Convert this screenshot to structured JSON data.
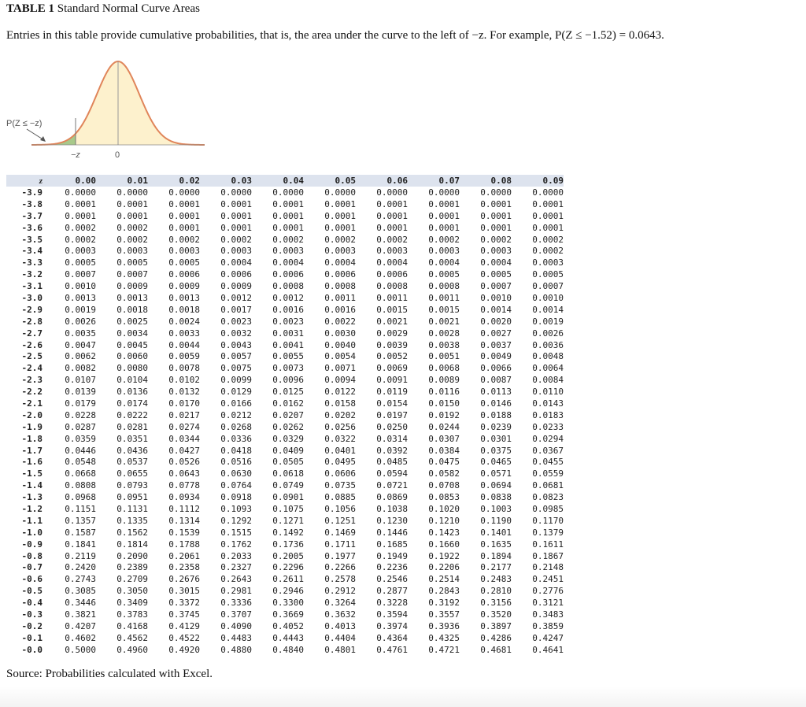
{
  "header": {
    "table_label": "TABLE 1",
    "title": "Standard Normal Curve Areas",
    "description": "Entries in this table provide cumulative probabilities, that is, the area under the curve to the left of −z. For example, P(Z ≤ −1.52) = 0.0643."
  },
  "figure": {
    "area_label": "P(Z ≤ −z)",
    "left_tick": "−z",
    "center_tick": "0",
    "colors": {
      "curve": "#e0855a",
      "area": "#a8c98a",
      "body": "#fdf1cd"
    }
  },
  "table": {
    "z_header": "z",
    "columns": [
      "0.00",
      "0.01",
      "0.02",
      "0.03",
      "0.04",
      "0.05",
      "0.06",
      "0.07",
      "0.08",
      "0.09"
    ],
    "rows": [
      {
        "z": "-3.9",
        "v": [
          "0.0000",
          "0.0000",
          "0.0000",
          "0.0000",
          "0.0000",
          "0.0000",
          "0.0000",
          "0.0000",
          "0.0000",
          "0.0000"
        ]
      },
      {
        "z": "-3.8",
        "v": [
          "0.0001",
          "0.0001",
          "0.0001",
          "0.0001",
          "0.0001",
          "0.0001",
          "0.0001",
          "0.0001",
          "0.0001",
          "0.0001"
        ]
      },
      {
        "z": "-3.7",
        "v": [
          "0.0001",
          "0.0001",
          "0.0001",
          "0.0001",
          "0.0001",
          "0.0001",
          "0.0001",
          "0.0001",
          "0.0001",
          "0.0001"
        ]
      },
      {
        "z": "-3.6",
        "v": [
          "0.0002",
          "0.0002",
          "0.0001",
          "0.0001",
          "0.0001",
          "0.0001",
          "0.0001",
          "0.0001",
          "0.0001",
          "0.0001"
        ]
      },
      {
        "z": "-3.5",
        "v": [
          "0.0002",
          "0.0002",
          "0.0002",
          "0.0002",
          "0.0002",
          "0.0002",
          "0.0002",
          "0.0002",
          "0.0002",
          "0.0002"
        ]
      },
      {
        "z": "-3.4",
        "v": [
          "0.0003",
          "0.0003",
          "0.0003",
          "0.0003",
          "0.0003",
          "0.0003",
          "0.0003",
          "0.0003",
          "0.0003",
          "0.0002"
        ]
      },
      {
        "z": "-3.3",
        "v": [
          "0.0005",
          "0.0005",
          "0.0005",
          "0.0004",
          "0.0004",
          "0.0004",
          "0.0004",
          "0.0004",
          "0.0004",
          "0.0003"
        ]
      },
      {
        "z": "-3.2",
        "v": [
          "0.0007",
          "0.0007",
          "0.0006",
          "0.0006",
          "0.0006",
          "0.0006",
          "0.0006",
          "0.0005",
          "0.0005",
          "0.0005"
        ]
      },
      {
        "z": "-3.1",
        "v": [
          "0.0010",
          "0.0009",
          "0.0009",
          "0.0009",
          "0.0008",
          "0.0008",
          "0.0008",
          "0.0008",
          "0.0007",
          "0.0007"
        ]
      },
      {
        "z": "-3.0",
        "v": [
          "0.0013",
          "0.0013",
          "0.0013",
          "0.0012",
          "0.0012",
          "0.0011",
          "0.0011",
          "0.0011",
          "0.0010",
          "0.0010"
        ]
      },
      {
        "z": "-2.9",
        "v": [
          "0.0019",
          "0.0018",
          "0.0018",
          "0.0017",
          "0.0016",
          "0.0016",
          "0.0015",
          "0.0015",
          "0.0014",
          "0.0014"
        ]
      },
      {
        "z": "-2.8",
        "v": [
          "0.0026",
          "0.0025",
          "0.0024",
          "0.0023",
          "0.0023",
          "0.0022",
          "0.0021",
          "0.0021",
          "0.0020",
          "0.0019"
        ]
      },
      {
        "z": "-2.7",
        "v": [
          "0.0035",
          "0.0034",
          "0.0033",
          "0.0032",
          "0.0031",
          "0.0030",
          "0.0029",
          "0.0028",
          "0.0027",
          "0.0026"
        ]
      },
      {
        "z": "-2.6",
        "v": [
          "0.0047",
          "0.0045",
          "0.0044",
          "0.0043",
          "0.0041",
          "0.0040",
          "0.0039",
          "0.0038",
          "0.0037",
          "0.0036"
        ]
      },
      {
        "z": "-2.5",
        "v": [
          "0.0062",
          "0.0060",
          "0.0059",
          "0.0057",
          "0.0055",
          "0.0054",
          "0.0052",
          "0.0051",
          "0.0049",
          "0.0048"
        ]
      },
      {
        "z": "-2.4",
        "v": [
          "0.0082",
          "0.0080",
          "0.0078",
          "0.0075",
          "0.0073",
          "0.0071",
          "0.0069",
          "0.0068",
          "0.0066",
          "0.0064"
        ]
      },
      {
        "z": "-2.3",
        "v": [
          "0.0107",
          "0.0104",
          "0.0102",
          "0.0099",
          "0.0096",
          "0.0094",
          "0.0091",
          "0.0089",
          "0.0087",
          "0.0084"
        ]
      },
      {
        "z": "-2.2",
        "v": [
          "0.0139",
          "0.0136",
          "0.0132",
          "0.0129",
          "0.0125",
          "0.0122",
          "0.0119",
          "0.0116",
          "0.0113",
          "0.0110"
        ]
      },
      {
        "z": "-2.1",
        "v": [
          "0.0179",
          "0.0174",
          "0.0170",
          "0.0166",
          "0.0162",
          "0.0158",
          "0.0154",
          "0.0150",
          "0.0146",
          "0.0143"
        ]
      },
      {
        "z": "-2.0",
        "v": [
          "0.0228",
          "0.0222",
          "0.0217",
          "0.0212",
          "0.0207",
          "0.0202",
          "0.0197",
          "0.0192",
          "0.0188",
          "0.0183"
        ]
      },
      {
        "z": "-1.9",
        "v": [
          "0.0287",
          "0.0281",
          "0.0274",
          "0.0268",
          "0.0262",
          "0.0256",
          "0.0250",
          "0.0244",
          "0.0239",
          "0.0233"
        ]
      },
      {
        "z": "-1.8",
        "v": [
          "0.0359",
          "0.0351",
          "0.0344",
          "0.0336",
          "0.0329",
          "0.0322",
          "0.0314",
          "0.0307",
          "0.0301",
          "0.0294"
        ]
      },
      {
        "z": "-1.7",
        "v": [
          "0.0446",
          "0.0436",
          "0.0427",
          "0.0418",
          "0.0409",
          "0.0401",
          "0.0392",
          "0.0384",
          "0.0375",
          "0.0367"
        ]
      },
      {
        "z": "-1.6",
        "v": [
          "0.0548",
          "0.0537",
          "0.0526",
          "0.0516",
          "0.0505",
          "0.0495",
          "0.0485",
          "0.0475",
          "0.0465",
          "0.0455"
        ]
      },
      {
        "z": "-1.5",
        "v": [
          "0.0668",
          "0.0655",
          "0.0643",
          "0.0630",
          "0.0618",
          "0.0606",
          "0.0594",
          "0.0582",
          "0.0571",
          "0.0559"
        ]
      },
      {
        "z": "-1.4",
        "v": [
          "0.0808",
          "0.0793",
          "0.0778",
          "0.0764",
          "0.0749",
          "0.0735",
          "0.0721",
          "0.0708",
          "0.0694",
          "0.0681"
        ]
      },
      {
        "z": "-1.3",
        "v": [
          "0.0968",
          "0.0951",
          "0.0934",
          "0.0918",
          "0.0901",
          "0.0885",
          "0.0869",
          "0.0853",
          "0.0838",
          "0.0823"
        ]
      },
      {
        "z": "-1.2",
        "v": [
          "0.1151",
          "0.1131",
          "0.1112",
          "0.1093",
          "0.1075",
          "0.1056",
          "0.1038",
          "0.1020",
          "0.1003",
          "0.0985"
        ]
      },
      {
        "z": "-1.1",
        "v": [
          "0.1357",
          "0.1335",
          "0.1314",
          "0.1292",
          "0.1271",
          "0.1251",
          "0.1230",
          "0.1210",
          "0.1190",
          "0.1170"
        ]
      },
      {
        "z": "-1.0",
        "v": [
          "0.1587",
          "0.1562",
          "0.1539",
          "0.1515",
          "0.1492",
          "0.1469",
          "0.1446",
          "0.1423",
          "0.1401",
          "0.1379"
        ]
      },
      {
        "z": "-0.9",
        "v": [
          "0.1841",
          "0.1814",
          "0.1788",
          "0.1762",
          "0.1736",
          "0.1711",
          "0.1685",
          "0.1660",
          "0.1635",
          "0.1611"
        ]
      },
      {
        "z": "-0.8",
        "v": [
          "0.2119",
          "0.2090",
          "0.2061",
          "0.2033",
          "0.2005",
          "0.1977",
          "0.1949",
          "0.1922",
          "0.1894",
          "0.1867"
        ]
      },
      {
        "z": "-0.7",
        "v": [
          "0.2420",
          "0.2389",
          "0.2358",
          "0.2327",
          "0.2296",
          "0.2266",
          "0.2236",
          "0.2206",
          "0.2177",
          "0.2148"
        ]
      },
      {
        "z": "-0.6",
        "v": [
          "0.2743",
          "0.2709",
          "0.2676",
          "0.2643",
          "0.2611",
          "0.2578",
          "0.2546",
          "0.2514",
          "0.2483",
          "0.2451"
        ]
      },
      {
        "z": "-0.5",
        "v": [
          "0.3085",
          "0.3050",
          "0.3015",
          "0.2981",
          "0.2946",
          "0.2912",
          "0.2877",
          "0.2843",
          "0.2810",
          "0.2776"
        ]
      },
      {
        "z": "-0.4",
        "v": [
          "0.3446",
          "0.3409",
          "0.3372",
          "0.3336",
          "0.3300",
          "0.3264",
          "0.3228",
          "0.3192",
          "0.3156",
          "0.3121"
        ]
      },
      {
        "z": "-0.3",
        "v": [
          "0.3821",
          "0.3783",
          "0.3745",
          "0.3707",
          "0.3669",
          "0.3632",
          "0.3594",
          "0.3557",
          "0.3520",
          "0.3483"
        ]
      },
      {
        "z": "-0.2",
        "v": [
          "0.4207",
          "0.4168",
          "0.4129",
          "0.4090",
          "0.4052",
          "0.4013",
          "0.3974",
          "0.3936",
          "0.3897",
          "0.3859"
        ]
      },
      {
        "z": "-0.1",
        "v": [
          "0.4602",
          "0.4562",
          "0.4522",
          "0.4483",
          "0.4443",
          "0.4404",
          "0.4364",
          "0.4325",
          "0.4286",
          "0.4247"
        ]
      },
      {
        "z": "-0.0",
        "v": [
          "0.5000",
          "0.4960",
          "0.4920",
          "0.4880",
          "0.4840",
          "0.4801",
          "0.4761",
          "0.4721",
          "0.4681",
          "0.4641"
        ]
      }
    ]
  },
  "footer": {
    "source": "Source: Probabilities calculated with Excel."
  }
}
